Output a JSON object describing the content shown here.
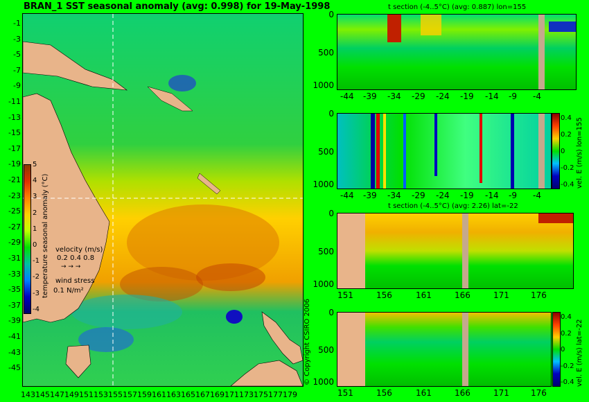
{
  "map": {
    "title": "BRAN_1 SST seasonal anomaly (avg: 0.998) for 19-May-1998",
    "y_ticks": [
      "-1",
      "-3",
      "-5",
      "-7",
      "-9",
      "-11",
      "-13",
      "-15",
      "-17",
      "-19",
      "-21",
      "-23",
      "-25",
      "-27",
      "-29",
      "-31",
      "-33",
      "-35",
      "-37",
      "-39",
      "-41",
      "-43",
      "-45"
    ],
    "x_ticks": [
      "143",
      "145",
      "147",
      "149",
      "151",
      "153",
      "155",
      "157",
      "159",
      "161",
      "163",
      "165",
      "167",
      "169",
      "171",
      "173",
      "175",
      "177",
      "179"
    ],
    "colorbar": {
      "label": "temperature seasonal anomaly (°C)",
      "ticks": [
        "5",
        "4",
        "3",
        "2",
        "1",
        "0",
        "-1",
        "-2",
        "-3",
        "-4"
      ]
    },
    "legend": {
      "velocity_label": "velocity (m/s)",
      "velocity_scale": "0.2 0.4 0.8",
      "wind_label": "wind stress",
      "wind_scale": "0.1 N/m²"
    },
    "copyright": "© Copyright CSIRO 2006"
  },
  "sections": [
    {
      "title": "t section (-4..5°C) (avg: 0.887) lon=155",
      "y_ticks": [
        "0",
        "500",
        "1000"
      ],
      "x_ticks": [
        "-44",
        "-39",
        "-34",
        "-29",
        "-24",
        "-19",
        "-14",
        "-9",
        "-4"
      ]
    },
    {
      "title": "",
      "y_ticks": [
        "0",
        "500",
        "1000"
      ],
      "x_ticks": [
        "-44",
        "-39",
        "-34",
        "-29",
        "-24",
        "-19",
        "-14",
        "-9",
        "-4"
      ],
      "colorbar_label": "vel. E (m/s) lon=155",
      "colorbar_ticks": [
        "0.4",
        "0.2",
        "0",
        "-0.2",
        "-0.4"
      ]
    },
    {
      "title": "t section (-4..5°C) (avg: 2.26) lat=-22",
      "y_ticks": [
        "0",
        "500",
        "1000"
      ],
      "x_ticks": [
        "151",
        "156",
        "161",
        "166",
        "171",
        "176"
      ]
    },
    {
      "title": "",
      "y_ticks": [
        "0",
        "500",
        "1000"
      ],
      "x_ticks": [
        "151",
        "156",
        "161",
        "166",
        "171",
        "176"
      ],
      "colorbar_label": "vel. E (m/s) lat=-22",
      "colorbar_ticks": [
        "0.4",
        "0.2",
        "0",
        "-0.2",
        "-0.4"
      ]
    }
  ]
}
